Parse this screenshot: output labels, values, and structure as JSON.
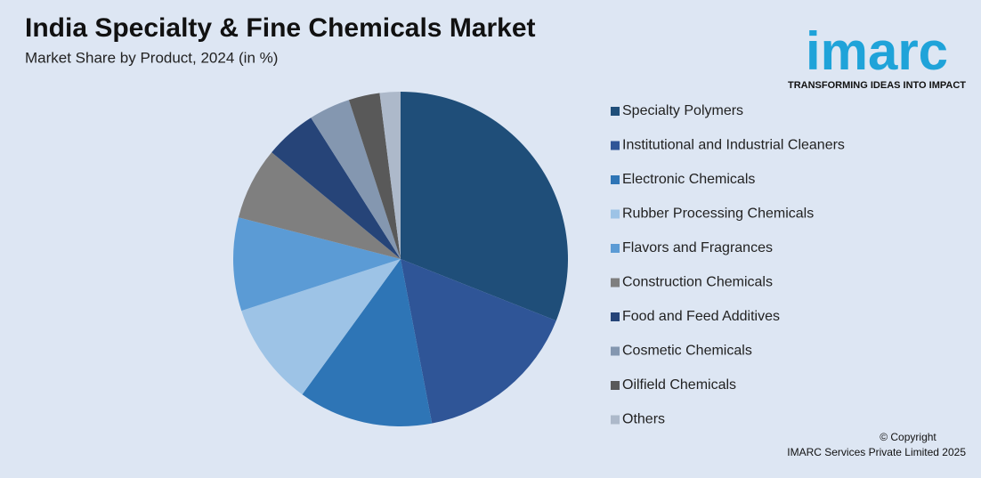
{
  "chart_data": {
    "type": "pie",
    "title": "India Specialty & Fine Chemicals Market",
    "subtitle": "Market Share by Product, 2024 (in %)",
    "categories": [
      "Specialty Polymers",
      "Institutional and Industrial Cleaners",
      "Electronic Chemicals",
      "Rubber Processing Chemicals",
      "Flavors and Fragrances",
      "Construction Chemicals",
      "Food and Feed Additives",
      "Cosmetic Chemicals",
      "Oilfield Chemicals",
      "Others"
    ],
    "values": [
      31,
      16,
      13,
      10,
      9,
      7,
      5,
      4,
      3,
      2
    ],
    "colors": [
      "#1f4e79",
      "#2f5597",
      "#2e75b6",
      "#9dc3e6",
      "#5b9bd5",
      "#7f7f7f",
      "#264478",
      "#8497b0",
      "#595959",
      "#adb9ca"
    ]
  },
  "logo": {
    "name": "imarc",
    "tagline": "TRANSFORMING IDEAS INTO IMPACT"
  },
  "copyright": {
    "line1": "© Copyright",
    "line2": "IMARC Services Private Limited 2025"
  }
}
